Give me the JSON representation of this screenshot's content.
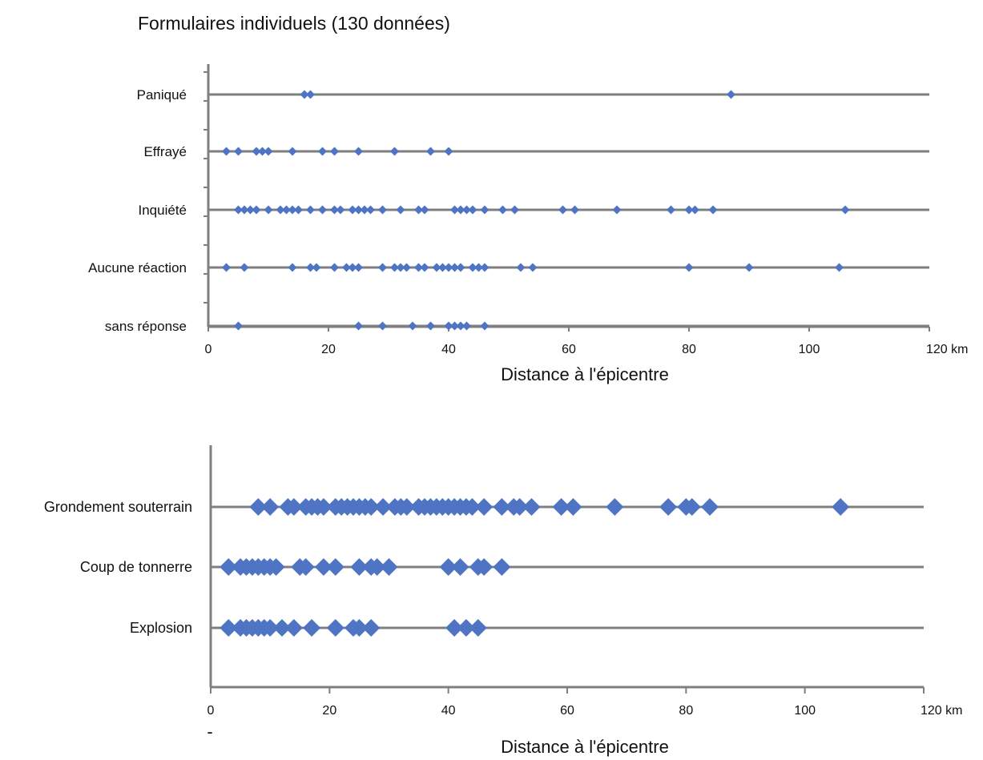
{
  "title": "Formulaires individuels (130 données)",
  "colors": {
    "marker": "#4f74c4",
    "line": "#7f7f7f",
    "axis": "#7f7f7f",
    "text": "#111111"
  },
  "chart_data": [
    {
      "type": "scatter",
      "marker": "diamond",
      "xlabel": "Distance à l'épicentre",
      "x_unit": "km",
      "xlim": [
        0,
        120
      ],
      "xticks": [
        0,
        20,
        40,
        60,
        80,
        100,
        120
      ],
      "xtick_labels": [
        "0",
        "20",
        "40",
        "60",
        "80",
        "100",
        "120 km"
      ],
      "grid": false,
      "series": [
        {
          "name": "Paniqué",
          "x": [
            16,
            17,
            87
          ]
        },
        {
          "name": "Effrayé",
          "x": [
            3,
            5,
            8,
            9,
            10,
            14,
            19,
            21,
            25,
            31,
            37,
            40
          ]
        },
        {
          "name": "Inquiété",
          "x": [
            5,
            6,
            7,
            8,
            10,
            12,
            13,
            14,
            15,
            17,
            19,
            21,
            22,
            24,
            25,
            26,
            27,
            29,
            32,
            35,
            36,
            41,
            42,
            43,
            44,
            46,
            49,
            51,
            59,
            61,
            68,
            77,
            80,
            81,
            84,
            106
          ]
        },
        {
          "name": "Aucune réaction",
          "x": [
            3,
            6,
            14,
            17,
            18,
            21,
            23,
            24,
            25,
            29,
            31,
            32,
            33,
            35,
            36,
            38,
            39,
            40,
            41,
            42,
            44,
            45,
            46,
            52,
            54,
            80,
            90,
            105
          ]
        },
        {
          "name": "sans réponse",
          "x": [
            5,
            25,
            29,
            34,
            37,
            40,
            41,
            42,
            43,
            46
          ]
        }
      ]
    },
    {
      "type": "scatter",
      "marker": "diamond",
      "xlabel": "Distance à l'épicentre",
      "x_unit": "km",
      "xlim": [
        0,
        120
      ],
      "xticks": [
        0,
        20,
        40,
        60,
        80,
        100,
        120
      ],
      "xtick_labels": [
        "0",
        "20",
        "40",
        "60",
        "80",
        "100",
        "120 km"
      ],
      "footnote": "-",
      "grid": false,
      "series": [
        {
          "name": "Grondement souterrain",
          "x": [
            8,
            10,
            13,
            14,
            16,
            17,
            18,
            19,
            21,
            22,
            23,
            24,
            25,
            26,
            27,
            29,
            31,
            32,
            33,
            35,
            36,
            37,
            38,
            39,
            40,
            41,
            42,
            43,
            44,
            46,
            49,
            51,
            52,
            54,
            59,
            61,
            68,
            77,
            80,
            81,
            84,
            106
          ]
        },
        {
          "name": "Coup de tonnerre",
          "x": [
            3,
            5,
            6,
            7,
            8,
            9,
            10,
            11,
            15,
            16,
            19,
            21,
            25,
            27,
            28,
            30,
            40,
            42,
            45,
            46,
            49
          ]
        },
        {
          "name": "Explosion",
          "x": [
            3,
            5,
            6,
            7,
            8,
            9,
            10,
            12,
            14,
            17,
            21,
            24,
            25,
            27,
            41,
            43,
            45
          ]
        }
      ]
    }
  ]
}
